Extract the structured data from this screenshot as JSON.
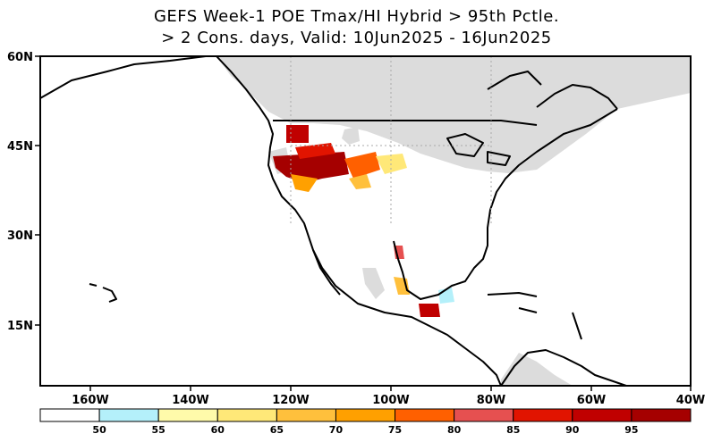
{
  "title": {
    "line1": "GEFS Week-1 POE Tmax/HI Hybrid > 95th Pctle.",
    "line2": "> 2 Cons. days, Valid: 10Jun2025 - 16Jun2025"
  },
  "map": {
    "lon_labels": [
      "160W",
      "140W",
      "120W",
      "100W",
      "80W",
      "60W",
      "40W"
    ],
    "lat_labels": [
      "60N",
      "45N",
      "30N",
      "15N"
    ],
    "land_color": "#ffffff",
    "ocean_color": "#ffffff",
    "masked_color": "#dcdcdc",
    "coast_color": "#000000"
  },
  "colorbar": {
    "labels": [
      "50",
      "55",
      "60",
      "65",
      "70",
      "75",
      "80",
      "85",
      "90",
      "95"
    ],
    "colors": [
      "#ffffff",
      "#b4f0fa",
      "#fffaaa",
      "#ffe878",
      "#ffc03c",
      "#ffa000",
      "#ff6000",
      "#e65050",
      "#e11400",
      "#c00000",
      "#a50000"
    ]
  }
}
